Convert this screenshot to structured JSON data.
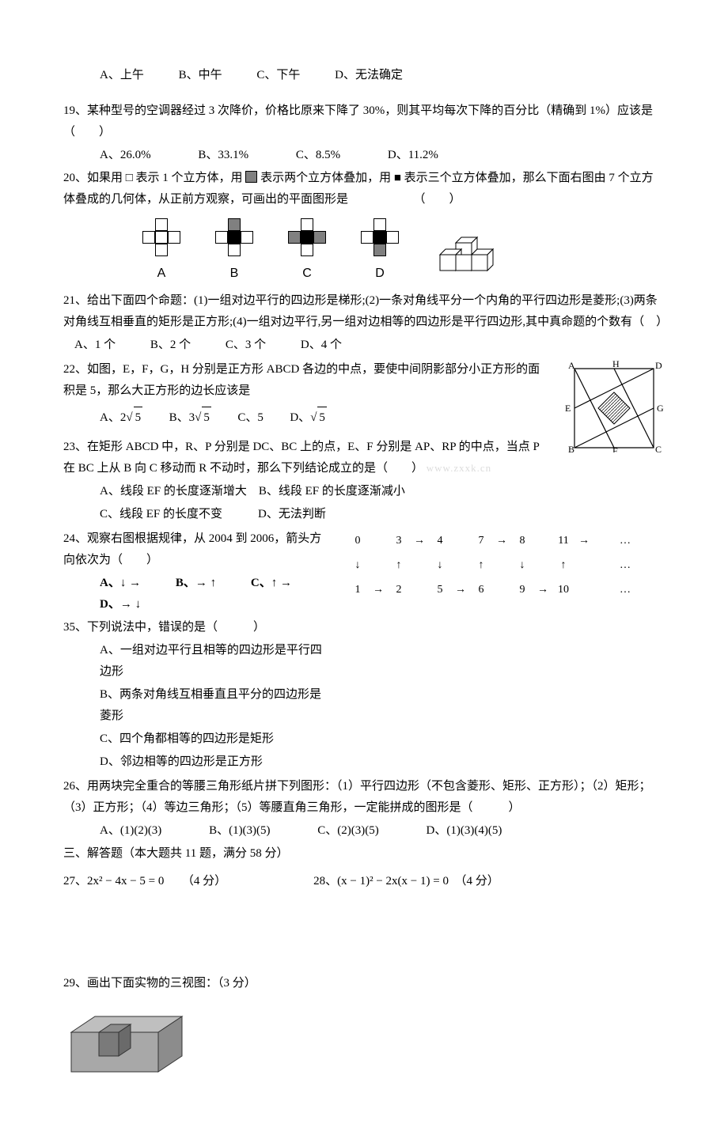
{
  "q18": {
    "opts": [
      "A、上午",
      "B、中午",
      "C、下午",
      "D、无法确定"
    ]
  },
  "q19": {
    "stem": "19、某种型号的空调器经过 3 次降价，价格比原来下降了 30%，则其平均每次下降的百分比（精确到 1%）应该是（　　）",
    "opts": [
      "A、26.0%",
      "B、33.1%",
      "C、8.5%",
      "D、11.2%"
    ]
  },
  "q20": {
    "stem1": "20、如果用 □ 表示 1 个立方体，用",
    "stem2": "表示两个立方体叠加，用 ■ 表示三个立方体叠加，那么下面右图由 7 个立方体叠成的几何体，从正前方观察，可画出的平面图形是　　　　　　（　　）",
    "labels": [
      "A",
      "B",
      "C",
      "D"
    ]
  },
  "q21": {
    "stem": "21、给出下面四个命题：(1)一组对边平行的四边形是梯形;(2)一条对角线平分一个内角的平行四边形是菱形;(3)两条对角线互相垂直的矩形是正方形;(4)一组对边平行,另一组对边相等的四边形是平行四边形,其中真命题的个数有（　）",
    "opts": [
      "A、1 个",
      "B、2 个",
      "C、3 个",
      "D、4 个"
    ]
  },
  "q22": {
    "stem1": "22、如图，E，F，G，H 分别是正方形 ABCD 各边的中点，要使中间阴影部分小正方形的面积是 5，那么大正方形的边长应该是",
    "opts": {
      "A": "A、2",
      "B": "B、3",
      "C": "C、5",
      "D": "D、"
    }
  },
  "q23": {
    "stem": "23、在矩形 ABCD 中，R、P 分别是 DC、BC 上的点，E、F 分别是 AP、RP 的中点，当点 P 在 BC 上从 B 向 C 移动而 R 不动时，那么下列结论成立的是（　　）",
    "opts1": "A、线段 EF 的长度逐渐增大　B、线段 EF 的长度逐渐减小",
    "opts2": "C、线段 EF 的长度不变　　　D、无法判断",
    "wm": "www.zxxk.cn"
  },
  "q24": {
    "stem": "24、观察右图根据规律，从 2004 到 2006，箭头方向依次为（　　）",
    "opts": [
      "A、↓ →",
      "B、→ ↑",
      "C、↑ →",
      "D、→ ↓"
    ],
    "arrows": {
      "r1": [
        "0",
        "",
        "3",
        "→",
        "4",
        "",
        "7",
        "→",
        "8",
        "",
        "11",
        "→",
        "",
        "…"
      ],
      "r2": [
        "↓",
        "",
        "↑",
        "",
        "↓",
        "",
        "↑",
        "",
        "↓",
        "",
        "↑",
        "",
        "",
        "…"
      ],
      "r3": [
        "1",
        "→",
        "2",
        "",
        "5",
        "→",
        "6",
        "",
        "9",
        "→",
        "10",
        "",
        "",
        "…"
      ]
    }
  },
  "q25": {
    "stem": "35、下列说法中，错误的是（　　　）",
    "lines": [
      "A、一组对边平行且相等的四边形是平行四边形",
      "B、两条对角线互相垂直且平分的四边形是菱形",
      "C、四个角都相等的四边形是矩形",
      "D、邻边相等的四边形是正方形"
    ]
  },
  "q26": {
    "stem": "26、用两块完全重合的等腰三角形纸片拼下列图形：（1）平行四边形（不包含菱形、矩形、正方形）；（2）矩形；（3）正方形；（4）等边三角形；（5）等腰直角三角形，一定能拼成的图形是（　　　）",
    "opts": [
      "A、(1)(2)(3)",
      "B、(1)(3)(5)",
      "C、(2)(3)(5)",
      "D、(1)(3)(4)(5)"
    ]
  },
  "sec3": "三、解答题（本大题共 11 题，满分 58 分）",
  "q27": "27、2x² − 4x − 5 = 0　　（4 分）",
  "q28": "28、(x − 1)² − 2x(x − 1) = 0　（4 分）",
  "q29": "29、画出下面实物的三视图：（3 分）"
}
